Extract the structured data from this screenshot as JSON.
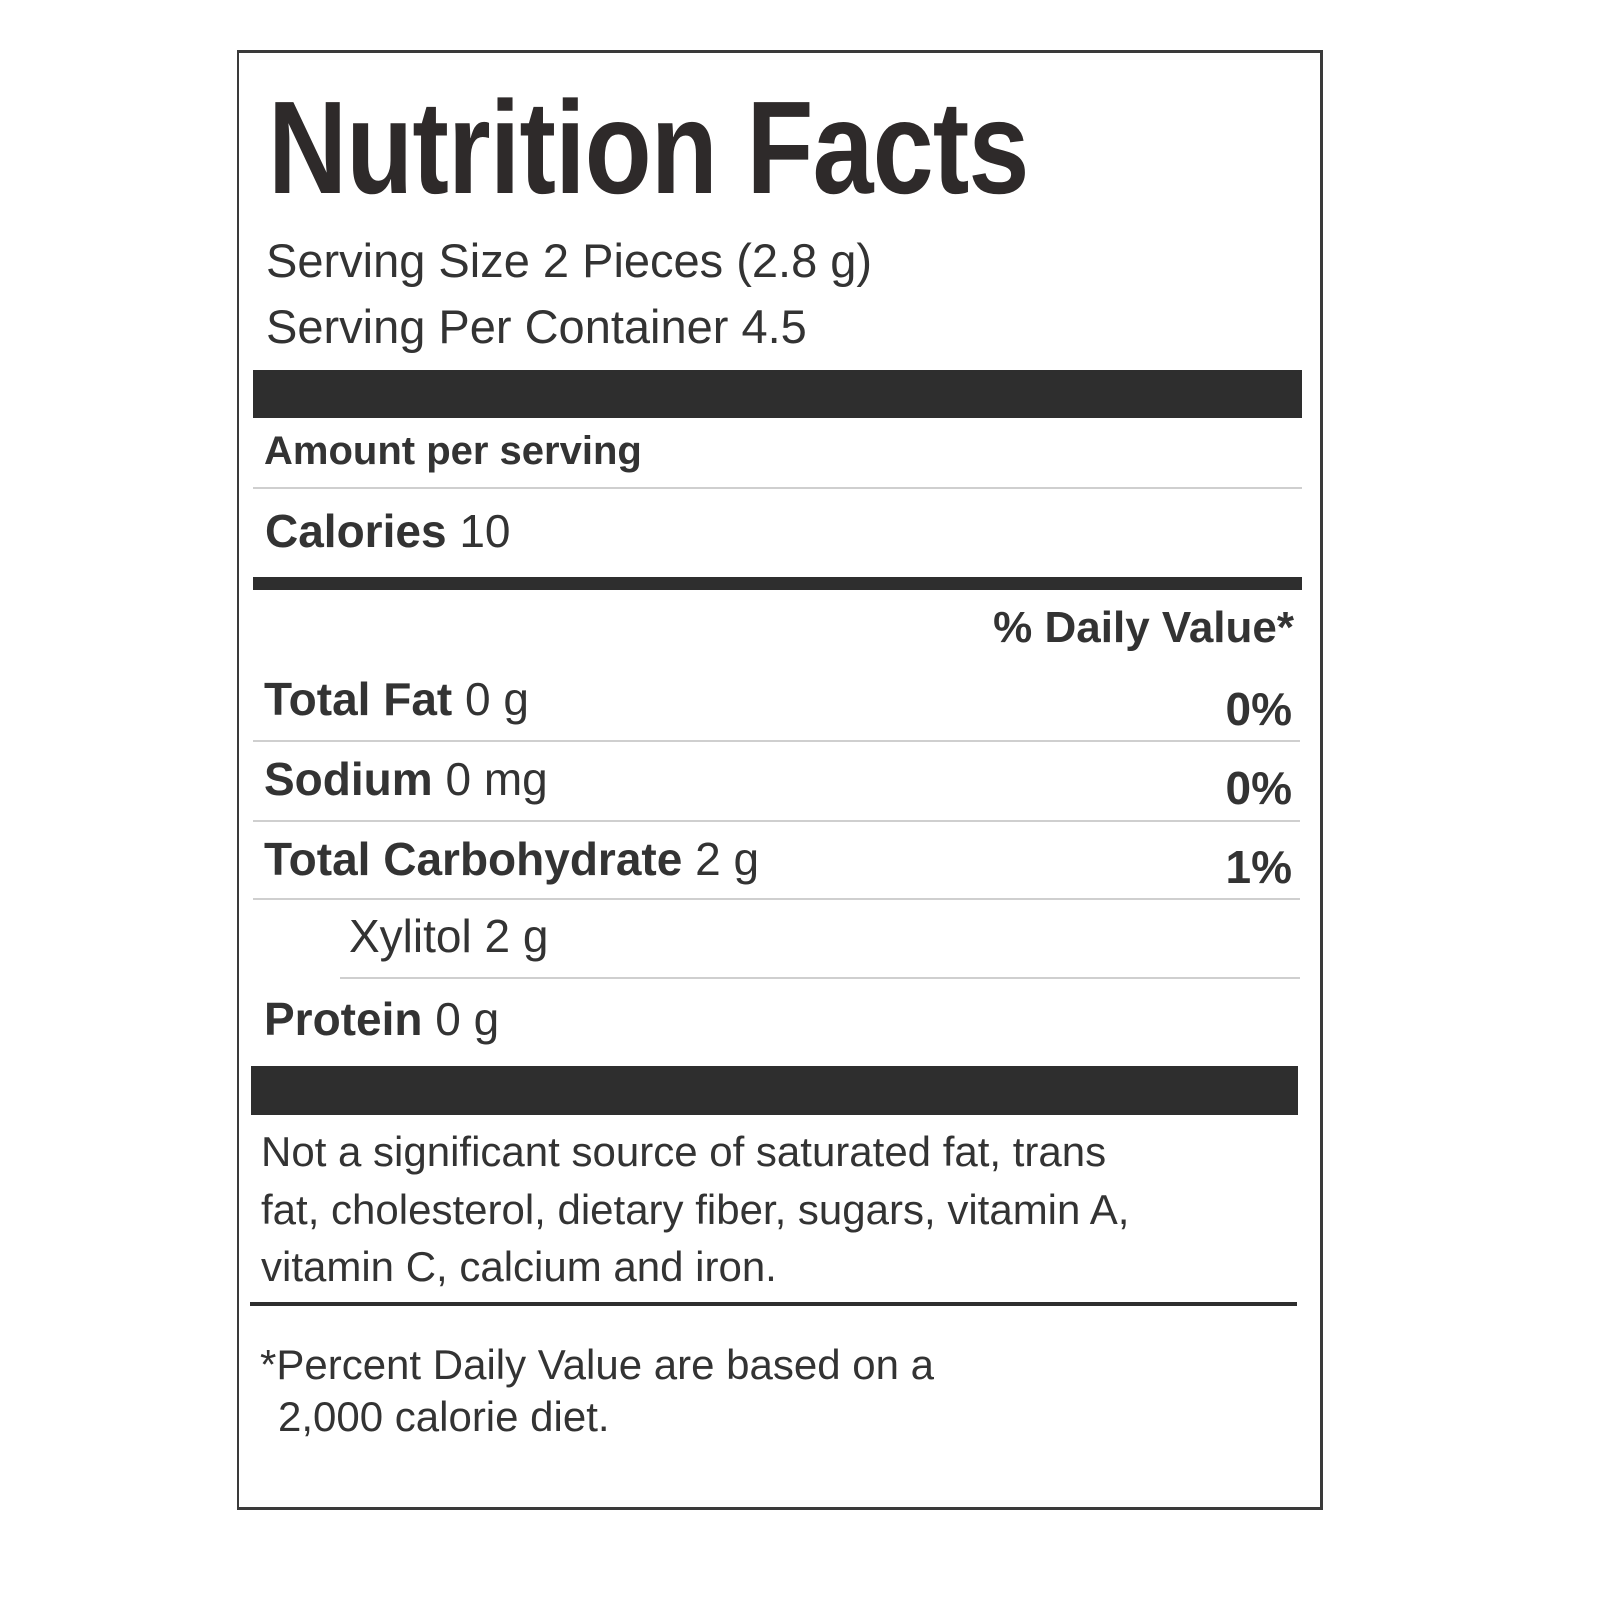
{
  "label": {
    "title": "Nutrition Facts",
    "serving_size": "Serving Size 2 Pieces (2.8 g)",
    "servings_per_container": "Serving Per Container 4.5",
    "amount_per_serving": "Amount per serving",
    "calories_label": "Calories",
    "calories_value": "10",
    "daily_value_header": "% Daily Value*",
    "nutrients": [
      {
        "name": "Total Fat",
        "amount": "0 g",
        "dv": "0%"
      },
      {
        "name": "Sodium",
        "amount": "0 mg",
        "dv": "0%"
      },
      {
        "name": "Total Carbohydrate",
        "amount": "2 g",
        "dv": "1%"
      },
      {
        "name": "Xylitol",
        "amount": "2 g",
        "dv": ""
      },
      {
        "name": "Protein",
        "amount": "0 g",
        "dv": ""
      }
    ],
    "not_significant": [
      "Not a significant source of saturated fat, trans",
      "fat, cholesterol, dietary fiber, sugars, vitamin A,",
      "vitamin C, calcium and iron."
    ],
    "footnote": [
      "*Percent Daily Value are based on a",
      "2,000 calorie diet."
    ]
  }
}
